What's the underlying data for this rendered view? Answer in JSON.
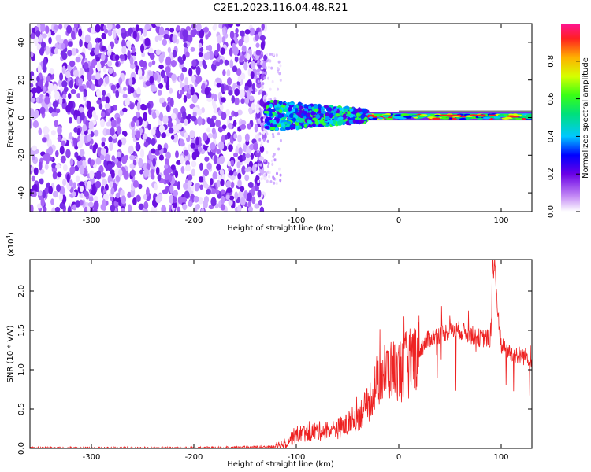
{
  "title": "C2E1.2023.116.04.48.R21",
  "colors": {
    "snr_line": "#ee2222",
    "signal_band": "#22cc66",
    "noise": "#8a2be2"
  },
  "chart_data": [
    {
      "type": "heatmap",
      "xlabel": "Height of straight line (km)",
      "ylabel": "Frequency (Hz)",
      "xlim": [
        -360,
        130
      ],
      "ylim": [
        -50,
        50
      ],
      "x_ticks": [
        "-300",
        "-200",
        "-100",
        "0",
        "100"
      ],
      "y_ticks": [
        "-40",
        "-20",
        "0",
        "20",
        "40"
      ],
      "colorbar": {
        "label": "Normalized spectral amplitude",
        "range": [
          0,
          1
        ],
        "ticks": [
          "0.0",
          "0.2",
          "0.4",
          "0.6",
          "0.8"
        ],
        "colormap": "rainbow"
      },
      "description_regions": [
        {
          "x_range": [
            -360,
            -130
          ],
          "freq_range": [
            -50,
            50
          ],
          "amplitude": "low (0.0-0.2) broadband noise"
        },
        {
          "x_range": [
            -130,
            -30
          ],
          "freq_range": [
            -8,
            8
          ],
          "amplitude": "0.2-0.6 signal onset"
        },
        {
          "x_range": [
            -30,
            130
          ],
          "freq_range": [
            -2,
            3
          ],
          "amplitude": "0.6-1.0 narrow signal near 1-2 Hz"
        }
      ]
    },
    {
      "type": "line",
      "xlabel": "Height of straight line (km)",
      "ylabel": "SNR (10 * V/V)",
      "y_multiplier": "(x10",
      "y_exponent": "4",
      "xlim": [
        -360,
        130
      ],
      "ylim": [
        0,
        2.4
      ],
      "x_ticks": [
        "-300",
        "-200",
        "-100",
        "0",
        "100"
      ],
      "y_ticks": [
        "0.0",
        "0.5",
        "1.0",
        "1.5",
        "2.0"
      ],
      "series": [
        {
          "x": [
            -360,
            -300,
            -250,
            -200,
            -150,
            -120,
            -110,
            -100,
            -90,
            -80,
            -70,
            -60,
            -50,
            -40,
            -30,
            -20,
            -10,
            0,
            10,
            20,
            30,
            40,
            50,
            60,
            70,
            80,
            90,
            93,
            100,
            110,
            120,
            130
          ],
          "values": [
            0.0,
            0.0,
            0.0,
            0.0,
            0.01,
            0.02,
            0.08,
            0.18,
            0.2,
            0.22,
            0.22,
            0.25,
            0.3,
            0.4,
            0.55,
            0.9,
            1.0,
            1.0,
            1.1,
            1.25,
            1.4,
            1.45,
            1.5,
            1.5,
            1.45,
            1.4,
            1.4,
            2.3,
            1.3,
            1.2,
            1.18,
            1.15
          ]
        }
      ]
    }
  ]
}
